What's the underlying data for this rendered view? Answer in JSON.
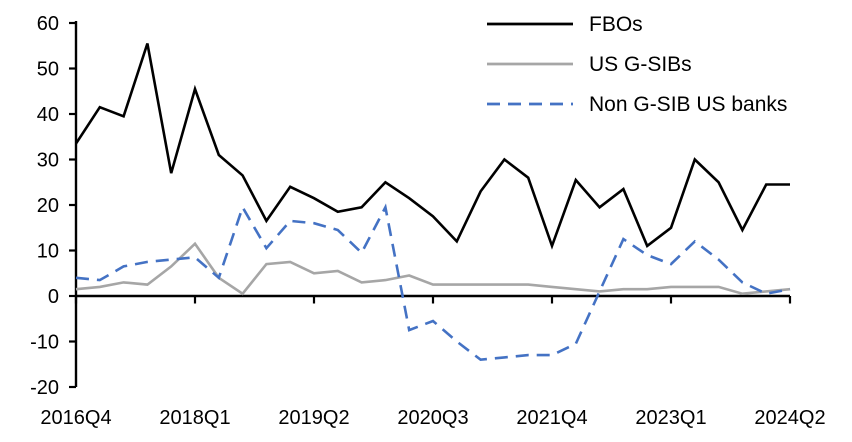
{
  "chart_data": {
    "type": "line",
    "title": "",
    "xlabel": "",
    "ylabel": "",
    "ylim": [
      -20,
      60
    ],
    "y_ticks": [
      60,
      50,
      40,
      30,
      20,
      10,
      0,
      -10,
      -20
    ],
    "grid": false,
    "legend_position": "top-right",
    "x_categories": [
      "2016Q4",
      "2017Q1",
      "2017Q2",
      "2017Q3",
      "2017Q4",
      "2018Q1",
      "2018Q2",
      "2018Q3",
      "2018Q4",
      "2019Q1",
      "2019Q2",
      "2019Q3",
      "2019Q4",
      "2020Q1",
      "2020Q2",
      "2020Q3",
      "2020Q4",
      "2021Q1",
      "2021Q2",
      "2021Q3",
      "2021Q4",
      "2022Q1",
      "2022Q2",
      "2022Q3",
      "2022Q4",
      "2023Q1",
      "2023Q2",
      "2023Q3",
      "2023Q4",
      "2024Q1",
      "2024Q2"
    ],
    "x_tick_labels": [
      "2016Q4",
      "2018Q1",
      "2019Q2",
      "2020Q3",
      "2021Q4",
      "2023Q1",
      "2024Q2"
    ],
    "axis_color": "#000000",
    "series": [
      {
        "name": "FBOs",
        "color": "#000000",
        "dash": "solid",
        "values": [
          33.5,
          41.5,
          39.5,
          55.5,
          27,
          45.5,
          31,
          26.5,
          16.5,
          24,
          21.5,
          18.5,
          19.5,
          25,
          21.5,
          17.5,
          12,
          23,
          30,
          26,
          11,
          25.5,
          19.5,
          23.5,
          11,
          15,
          30,
          25,
          14.5,
          24.5,
          24.5
        ]
      },
      {
        "name": "US G-SIBs",
        "color": "#a6a6a6",
        "dash": "solid",
        "values": [
          1.5,
          2,
          3,
          2.5,
          6.5,
          11.5,
          4,
          0.5,
          7,
          7.5,
          5,
          5.5,
          3,
          3.5,
          4.5,
          2.5,
          2.5,
          2.5,
          2.5,
          2.5,
          2,
          1.5,
          1,
          1.5,
          1.5,
          2,
          2,
          2,
          0.5,
          1,
          1.5
        ]
      },
      {
        "name": "Non G-SIB US banks",
        "color": "#4472c4",
        "dash": "dashed",
        "values": [
          4,
          3.5,
          6.5,
          7.5,
          8,
          8.5,
          4,
          19.5,
          10.5,
          16.5,
          16,
          14.5,
          9.5,
          19.5,
          -7.5,
          -5.5,
          -10,
          -14,
          -13.5,
          -13,
          -13,
          -10.5,
          1,
          12.5,
          9,
          7,
          12,
          8,
          3,
          0.5,
          1.5
        ]
      }
    ]
  }
}
